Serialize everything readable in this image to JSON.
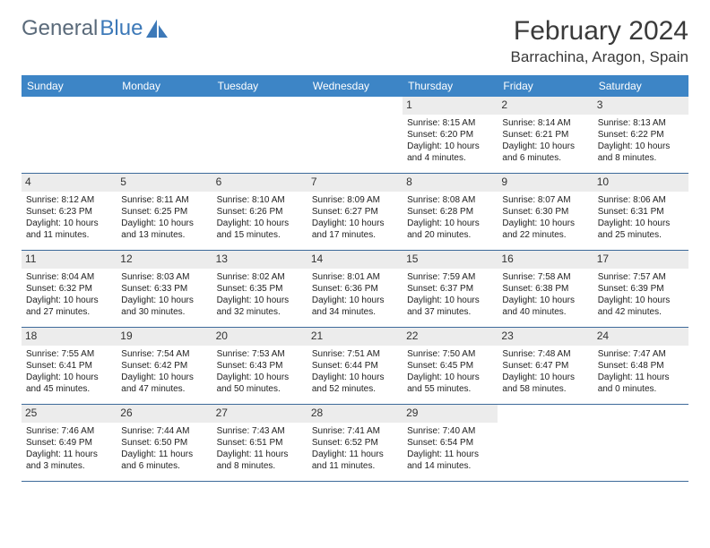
{
  "brand": {
    "part1": "General",
    "part2": "Blue"
  },
  "title": "February 2024",
  "location": "Barrachina, Aragon, Spain",
  "colors": {
    "header_bg": "#3d85c6",
    "header_text": "#ffffff",
    "daynum_bg": "#ececec",
    "rule": "#3d6a9a",
    "brand_gray": "#5a6a7a",
    "brand_blue": "#3d79b8"
  },
  "dow": [
    "Sunday",
    "Monday",
    "Tuesday",
    "Wednesday",
    "Thursday",
    "Friday",
    "Saturday"
  ],
  "weeks": [
    [
      {
        "n": "",
        "sr": "",
        "ss": "",
        "d1": "",
        "d2": ""
      },
      {
        "n": "",
        "sr": "",
        "ss": "",
        "d1": "",
        "d2": ""
      },
      {
        "n": "",
        "sr": "",
        "ss": "",
        "d1": "",
        "d2": ""
      },
      {
        "n": "",
        "sr": "",
        "ss": "",
        "d1": "",
        "d2": ""
      },
      {
        "n": "1",
        "sr": "Sunrise: 8:15 AM",
        "ss": "Sunset: 6:20 PM",
        "d1": "Daylight: 10 hours",
        "d2": "and 4 minutes."
      },
      {
        "n": "2",
        "sr": "Sunrise: 8:14 AM",
        "ss": "Sunset: 6:21 PM",
        "d1": "Daylight: 10 hours",
        "d2": "and 6 minutes."
      },
      {
        "n": "3",
        "sr": "Sunrise: 8:13 AM",
        "ss": "Sunset: 6:22 PM",
        "d1": "Daylight: 10 hours",
        "d2": "and 8 minutes."
      }
    ],
    [
      {
        "n": "4",
        "sr": "Sunrise: 8:12 AM",
        "ss": "Sunset: 6:23 PM",
        "d1": "Daylight: 10 hours",
        "d2": "and 11 minutes."
      },
      {
        "n": "5",
        "sr": "Sunrise: 8:11 AM",
        "ss": "Sunset: 6:25 PM",
        "d1": "Daylight: 10 hours",
        "d2": "and 13 minutes."
      },
      {
        "n": "6",
        "sr": "Sunrise: 8:10 AM",
        "ss": "Sunset: 6:26 PM",
        "d1": "Daylight: 10 hours",
        "d2": "and 15 minutes."
      },
      {
        "n": "7",
        "sr": "Sunrise: 8:09 AM",
        "ss": "Sunset: 6:27 PM",
        "d1": "Daylight: 10 hours",
        "d2": "and 17 minutes."
      },
      {
        "n": "8",
        "sr": "Sunrise: 8:08 AM",
        "ss": "Sunset: 6:28 PM",
        "d1": "Daylight: 10 hours",
        "d2": "and 20 minutes."
      },
      {
        "n": "9",
        "sr": "Sunrise: 8:07 AM",
        "ss": "Sunset: 6:30 PM",
        "d1": "Daylight: 10 hours",
        "d2": "and 22 minutes."
      },
      {
        "n": "10",
        "sr": "Sunrise: 8:06 AM",
        "ss": "Sunset: 6:31 PM",
        "d1": "Daylight: 10 hours",
        "d2": "and 25 minutes."
      }
    ],
    [
      {
        "n": "11",
        "sr": "Sunrise: 8:04 AM",
        "ss": "Sunset: 6:32 PM",
        "d1": "Daylight: 10 hours",
        "d2": "and 27 minutes."
      },
      {
        "n": "12",
        "sr": "Sunrise: 8:03 AM",
        "ss": "Sunset: 6:33 PM",
        "d1": "Daylight: 10 hours",
        "d2": "and 30 minutes."
      },
      {
        "n": "13",
        "sr": "Sunrise: 8:02 AM",
        "ss": "Sunset: 6:35 PM",
        "d1": "Daylight: 10 hours",
        "d2": "and 32 minutes."
      },
      {
        "n": "14",
        "sr": "Sunrise: 8:01 AM",
        "ss": "Sunset: 6:36 PM",
        "d1": "Daylight: 10 hours",
        "d2": "and 34 minutes."
      },
      {
        "n": "15",
        "sr": "Sunrise: 7:59 AM",
        "ss": "Sunset: 6:37 PM",
        "d1": "Daylight: 10 hours",
        "d2": "and 37 minutes."
      },
      {
        "n": "16",
        "sr": "Sunrise: 7:58 AM",
        "ss": "Sunset: 6:38 PM",
        "d1": "Daylight: 10 hours",
        "d2": "and 40 minutes."
      },
      {
        "n": "17",
        "sr": "Sunrise: 7:57 AM",
        "ss": "Sunset: 6:39 PM",
        "d1": "Daylight: 10 hours",
        "d2": "and 42 minutes."
      }
    ],
    [
      {
        "n": "18",
        "sr": "Sunrise: 7:55 AM",
        "ss": "Sunset: 6:41 PM",
        "d1": "Daylight: 10 hours",
        "d2": "and 45 minutes."
      },
      {
        "n": "19",
        "sr": "Sunrise: 7:54 AM",
        "ss": "Sunset: 6:42 PM",
        "d1": "Daylight: 10 hours",
        "d2": "and 47 minutes."
      },
      {
        "n": "20",
        "sr": "Sunrise: 7:53 AM",
        "ss": "Sunset: 6:43 PM",
        "d1": "Daylight: 10 hours",
        "d2": "and 50 minutes."
      },
      {
        "n": "21",
        "sr": "Sunrise: 7:51 AM",
        "ss": "Sunset: 6:44 PM",
        "d1": "Daylight: 10 hours",
        "d2": "and 52 minutes."
      },
      {
        "n": "22",
        "sr": "Sunrise: 7:50 AM",
        "ss": "Sunset: 6:45 PM",
        "d1": "Daylight: 10 hours",
        "d2": "and 55 minutes."
      },
      {
        "n": "23",
        "sr": "Sunrise: 7:48 AM",
        "ss": "Sunset: 6:47 PM",
        "d1": "Daylight: 10 hours",
        "d2": "and 58 minutes."
      },
      {
        "n": "24",
        "sr": "Sunrise: 7:47 AM",
        "ss": "Sunset: 6:48 PM",
        "d1": "Daylight: 11 hours",
        "d2": "and 0 minutes."
      }
    ],
    [
      {
        "n": "25",
        "sr": "Sunrise: 7:46 AM",
        "ss": "Sunset: 6:49 PM",
        "d1": "Daylight: 11 hours",
        "d2": "and 3 minutes."
      },
      {
        "n": "26",
        "sr": "Sunrise: 7:44 AM",
        "ss": "Sunset: 6:50 PM",
        "d1": "Daylight: 11 hours",
        "d2": "and 6 minutes."
      },
      {
        "n": "27",
        "sr": "Sunrise: 7:43 AM",
        "ss": "Sunset: 6:51 PM",
        "d1": "Daylight: 11 hours",
        "d2": "and 8 minutes."
      },
      {
        "n": "28",
        "sr": "Sunrise: 7:41 AM",
        "ss": "Sunset: 6:52 PM",
        "d1": "Daylight: 11 hours",
        "d2": "and 11 minutes."
      },
      {
        "n": "29",
        "sr": "Sunrise: 7:40 AM",
        "ss": "Sunset: 6:54 PM",
        "d1": "Daylight: 11 hours",
        "d2": "and 14 minutes."
      },
      {
        "n": "",
        "sr": "",
        "ss": "",
        "d1": "",
        "d2": ""
      },
      {
        "n": "",
        "sr": "",
        "ss": "",
        "d1": "",
        "d2": ""
      }
    ]
  ]
}
